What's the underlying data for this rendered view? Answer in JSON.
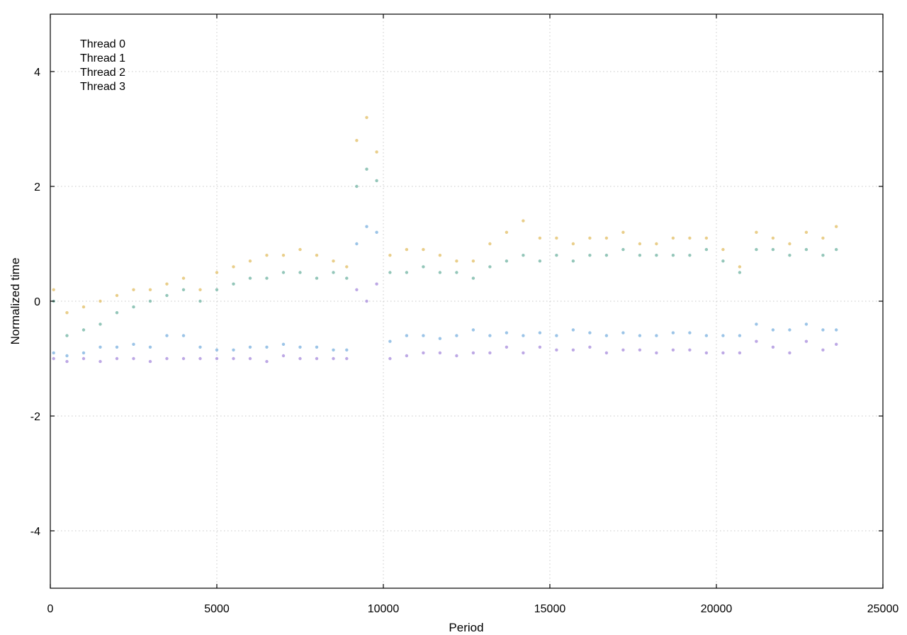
{
  "chart_data": {
    "type": "scatter",
    "title": "",
    "xlabel": "Period",
    "ylabel": "Normalized time",
    "xlim": [
      0,
      25000
    ],
    "ylim": [
      -5,
      5
    ],
    "x_ticks": [
      0,
      5000,
      10000,
      15000,
      20000,
      25000
    ],
    "x_tick_labels": [
      "0",
      "5000",
      "10000",
      "15000",
      "20000",
      "25000"
    ],
    "y_ticks": [
      -4,
      -2,
      0,
      2,
      4
    ],
    "y_tick_labels": [
      "-4",
      "-2",
      "0",
      "2",
      "4"
    ],
    "grid": true,
    "legend_position": "top-left",
    "series": [
      {
        "name": "Thread 0",
        "color": "#a78bdc",
        "x": [
          100,
          500,
          1000,
          1500,
          2000,
          2500,
          3000,
          3500,
          4000,
          4500,
          5000,
          5500,
          6000,
          6500,
          7000,
          7500,
          8000,
          8500,
          8900,
          9200,
          9500,
          9800,
          10200,
          10700,
          11200,
          11700,
          12200,
          12700,
          13200,
          13700,
          14200,
          14700,
          15200,
          15700,
          16200,
          16700,
          17200,
          17700,
          18200,
          18700,
          19200,
          19700,
          20200,
          20700,
          21200,
          21700,
          22200,
          22700,
          23200,
          23600
        ],
        "y": [
          -1.0,
          -1.05,
          -1.0,
          -1.05,
          -1.0,
          -1.0,
          -1.05,
          -1.0,
          -1.0,
          -1.0,
          -1.0,
          -1.0,
          -1.0,
          -1.05,
          -0.95,
          -1.0,
          -1.0,
          -1.0,
          -1.0,
          0.2,
          0.0,
          0.3,
          -1.0,
          -0.95,
          -0.9,
          -0.9,
          -0.95,
          -0.9,
          -0.9,
          -0.8,
          -0.9,
          -0.8,
          -0.85,
          -0.85,
          -0.8,
          -0.9,
          -0.85,
          -0.85,
          -0.9,
          -0.85,
          -0.85,
          -0.9,
          -0.9,
          -0.9,
          -0.7,
          -0.8,
          -0.9,
          -0.7,
          -0.85,
          -0.75
        ]
      },
      {
        "name": "Thread 1",
        "color": "#7ab0df",
        "x": [
          100,
          500,
          1000,
          1500,
          2000,
          2500,
          3000,
          3500,
          4000,
          4500,
          5000,
          5500,
          6000,
          6500,
          7000,
          7500,
          8000,
          8500,
          8900,
          9200,
          9500,
          9800,
          10200,
          10700,
          11200,
          11700,
          12200,
          12700,
          13200,
          13700,
          14200,
          14700,
          15200,
          15700,
          16200,
          16700,
          17200,
          17700,
          18200,
          18700,
          19200,
          19700,
          20200,
          20700,
          21200,
          21700,
          22200,
          22700,
          23200,
          23600
        ],
        "y": [
          -0.9,
          -0.95,
          -0.9,
          -0.8,
          -0.8,
          -0.75,
          -0.8,
          -0.6,
          -0.6,
          -0.8,
          -0.85,
          -0.85,
          -0.8,
          -0.8,
          -0.75,
          -0.8,
          -0.8,
          -0.85,
          -0.85,
          1.0,
          1.3,
          1.2,
          -0.7,
          -0.6,
          -0.6,
          -0.65,
          -0.6,
          -0.5,
          -0.6,
          -0.55,
          -0.6,
          -0.55,
          -0.6,
          -0.5,
          -0.55,
          -0.6,
          -0.55,
          -0.6,
          -0.6,
          -0.55,
          -0.55,
          -0.6,
          -0.6,
          -0.6,
          -0.4,
          -0.5,
          -0.5,
          -0.4,
          -0.5,
          -0.5
        ]
      },
      {
        "name": "Thread 2",
        "color": "#6fb3a2",
        "x": [
          100,
          500,
          1000,
          1500,
          2000,
          2500,
          3000,
          3500,
          4000,
          4500,
          5000,
          5500,
          6000,
          6500,
          7000,
          7500,
          8000,
          8500,
          8900,
          9200,
          9500,
          9800,
          10200,
          10700,
          11200,
          11700,
          12200,
          12700,
          13200,
          13700,
          14200,
          14700,
          15200,
          15700,
          16200,
          16700,
          17200,
          17700,
          18200,
          18700,
          19200,
          19700,
          20200,
          20700,
          21200,
          21700,
          22200,
          22700,
          23200,
          23600
        ],
        "y": [
          0.0,
          -0.6,
          -0.5,
          -0.4,
          -0.2,
          -0.1,
          0.0,
          0.1,
          0.2,
          0.0,
          0.2,
          0.3,
          0.4,
          0.4,
          0.5,
          0.5,
          0.4,
          0.5,
          0.4,
          2.0,
          2.3,
          2.1,
          0.5,
          0.5,
          0.6,
          0.5,
          0.5,
          0.4,
          0.6,
          0.7,
          0.8,
          0.7,
          0.8,
          0.7,
          0.8,
          0.8,
          0.9,
          0.8,
          0.8,
          0.8,
          0.8,
          0.9,
          0.7,
          0.5,
          0.9,
          0.9,
          0.8,
          0.9,
          0.8,
          0.9
        ]
      },
      {
        "name": "Thread 3",
        "color": "#e2bd63",
        "x": [
          100,
          500,
          1000,
          1500,
          2000,
          2500,
          3000,
          3500,
          4000,
          4500,
          5000,
          5500,
          6000,
          6500,
          7000,
          7500,
          8000,
          8500,
          8900,
          9200,
          9500,
          9800,
          10200,
          10700,
          11200,
          11700,
          12200,
          12700,
          13200,
          13700,
          14200,
          14700,
          15200,
          15700,
          16200,
          16700,
          17200,
          17700,
          18200,
          18700,
          19200,
          19700,
          20200,
          20700,
          21200,
          21700,
          22200,
          22700,
          23200,
          23600
        ],
        "y": [
          0.2,
          -0.2,
          -0.1,
          0.0,
          0.1,
          0.2,
          0.2,
          0.3,
          0.4,
          0.2,
          0.5,
          0.6,
          0.7,
          0.8,
          0.8,
          0.9,
          0.8,
          0.7,
          0.6,
          2.8,
          3.2,
          2.6,
          0.8,
          0.9,
          0.9,
          0.8,
          0.7,
          0.7,
          1.0,
          1.2,
          1.4,
          1.1,
          1.1,
          1.0,
          1.1,
          1.1,
          1.2,
          1.0,
          1.0,
          1.1,
          1.1,
          1.1,
          0.9,
          0.6,
          1.2,
          1.1,
          1.0,
          1.2,
          1.1,
          1.3
        ]
      }
    ]
  }
}
